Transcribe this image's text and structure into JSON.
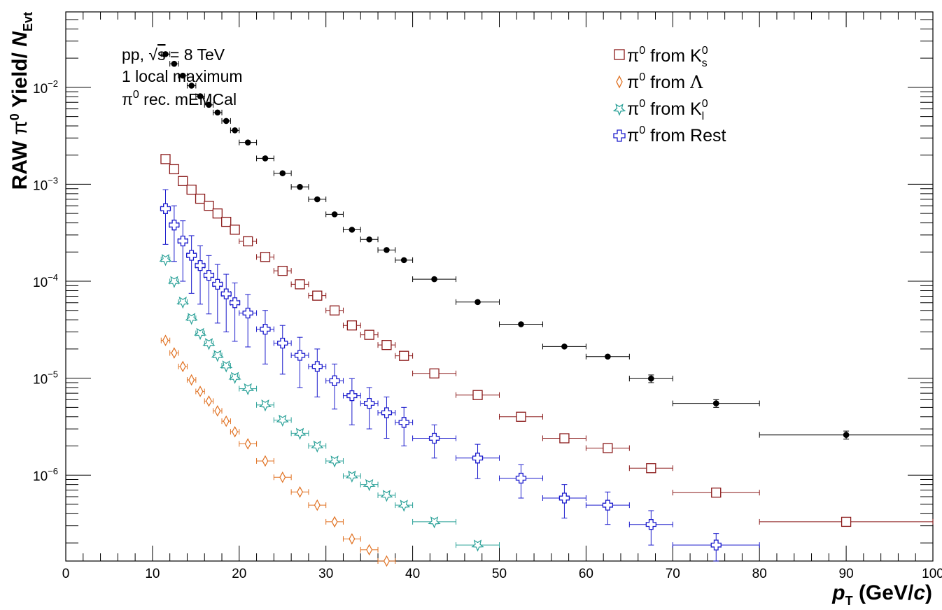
{
  "chart_data": {
    "type": "scatter",
    "x_scale": "linear",
    "y_scale": "log",
    "xlim": [
      0,
      100
    ],
    "ylim": [
      1.3e-07,
      0.06
    ],
    "x_ticks": [
      0,
      10,
      20,
      30,
      40,
      50,
      60,
      70,
      80,
      90,
      100
    ],
    "y_ticks": [
      {
        "value": 1e-06,
        "base": "10",
        "exp": "−6"
      },
      {
        "value": 1e-05,
        "base": "10",
        "exp": "−5"
      },
      {
        "value": 0.0001,
        "base": "10",
        "exp": "−4"
      },
      {
        "value": 0.001,
        "base": "10",
        "exp": "−3"
      },
      {
        "value": 0.01,
        "base": "10",
        "exp": "−2"
      }
    ],
    "xlabel": {
      "p": "p",
      "sub": "T",
      "rest": " (GeV/",
      "c": "c",
      "close": ")"
    },
    "ylabel": {
      "raw": "RAW ",
      "pi": "π",
      "sup": "0",
      "yield": " Yield/ ",
      "n": "N",
      "sub": "Evt"
    },
    "annotations": {
      "line1_a": "pp, ",
      "line1_sqrt": "√",
      "line1_s": "s",
      "line1_b": " = 8 TeV",
      "line2": "1 local maximum",
      "line3_pi": "π",
      "line3_sup": "0",
      "line3_rest": " rec. mEMCal"
    },
    "x_bins": [
      [
        11,
        12
      ],
      [
        12,
        13
      ],
      [
        13,
        14
      ],
      [
        14,
        15
      ],
      [
        15,
        16
      ],
      [
        16,
        17
      ],
      [
        17,
        18
      ],
      [
        18,
        19
      ],
      [
        19,
        20
      ],
      [
        20,
        22
      ],
      [
        22,
        24
      ],
      [
        24,
        26
      ],
      [
        26,
        28
      ],
      [
        28,
        30
      ],
      [
        30,
        32
      ],
      [
        32,
        34
      ],
      [
        34,
        36
      ],
      [
        36,
        38
      ],
      [
        38,
        40
      ],
      [
        40,
        45
      ],
      [
        45,
        50
      ],
      [
        50,
        55
      ],
      [
        55,
        60
      ],
      [
        60,
        65
      ],
      [
        65,
        70
      ],
      [
        70,
        80
      ],
      [
        80,
        100
      ]
    ],
    "series": [
      {
        "name": "",
        "marker": "filled-circle",
        "color": "#000000",
        "values": [
          0.022,
          0.0175,
          0.0132,
          0.0104,
          0.0081,
          0.0066,
          0.0055,
          0.0045,
          0.0036,
          0.0027,
          0.00185,
          0.0013,
          0.00094,
          0.0007,
          0.00049,
          0.00034,
          0.00027,
          0.00021,
          0.000165,
          0.000105,
          6.1e-05,
          3.6e-05,
          2.12e-05,
          1.67e-05,
          9.9e-06,
          5.5e-06,
          2.6e-06
        ],
        "y_errors": [
          0,
          0,
          0,
          0,
          0,
          0,
          0,
          0,
          0,
          0,
          0,
          0,
          0,
          0,
          0,
          0,
          0,
          0,
          0,
          0,
          0,
          0,
          0,
          0,
          9e-07,
          5e-07,
          2.5e-07
        ]
      },
      {
        "legend": {
          "pi": "π",
          "sup": "0",
          "text": " from K",
          "sub": "s",
          "sup2": "0"
        },
        "marker": "open-square",
        "color": "#8b1a1a",
        "values": [
          0.00182,
          0.00143,
          0.00108,
          0.00088,
          0.00071,
          0.0006,
          0.0005,
          0.00041,
          0.00034,
          0.000258,
          0.000178,
          0.000128,
          9.3e-05,
          7.1e-05,
          5e-05,
          3.5e-05,
          2.8e-05,
          2.2e-05,
          1.7e-05,
          1.12e-05,
          6.7e-06,
          4e-06,
          2.4e-06,
          1.9e-06,
          1.18e-06,
          6.6e-07,
          3.3e-07
        ]
      },
      {
        "legend": {
          "pi": "π",
          "sup": "0",
          "text": " from ",
          "lam": "Λ"
        },
        "marker": "open-diamond",
        "color": "#e07020",
        "values": [
          2.45e-05,
          1.82e-05,
          1.32e-05,
          9.6e-06,
          7.3e-06,
          5.8e-06,
          4.6e-06,
          3.6e-06,
          2.8e-06,
          2.1e-06,
          1.4e-06,
          9.5e-07,
          6.7e-07,
          4.9e-07,
          3.3e-07,
          2.2e-07,
          1.7e-07,
          1.3e-07
        ]
      },
      {
        "legend": {
          "pi": "π",
          "sup": "0",
          "text": " from K",
          "sub": "l",
          "sup2": "0"
        },
        "marker": "open-star",
        "color": "#2aa198",
        "values": [
          0.000168,
          9.95e-05,
          6.1e-05,
          4.15e-05,
          2.9e-05,
          2.28e-05,
          1.72e-05,
          1.34e-05,
          1.02e-05,
          7.8e-06,
          5.3e-06,
          3.7e-06,
          2.7e-06,
          2e-06,
          1.4e-06,
          9.8e-07,
          8e-07,
          6.2e-07,
          4.9e-07,
          3.3e-07,
          1.9e-07
        ]
      },
      {
        "legend": {
          "pi": "π",
          "sup": "0",
          "text": " from Rest"
        },
        "marker": "open-cross",
        "color": "#1a1acc",
        "values": [
          0.00056,
          0.00038,
          0.00026,
          0.000185,
          0.000145,
          0.000115,
          9.3e-05,
          7.4e-05,
          6e-05,
          4.7e-05,
          3.2e-05,
          2.3e-05,
          1.72e-05,
          1.32e-05,
          9.4e-06,
          6.6e-06,
          5.5e-06,
          4.4e-06,
          3.5e-06,
          2.4e-06,
          1.5e-06,
          9.3e-07,
          5.8e-07,
          4.9e-07,
          3.1e-07,
          1.9e-07
        ],
        "y_errors": [
          0.00032,
          0.00022,
          0.00016,
          0.00011,
          8.7e-05,
          6.9e-05,
          5.6e-05,
          4.4e-05,
          3.6e-05,
          2.6e-05,
          1.8e-05,
          1.2e-05,
          9.2e-06,
          6.8e-06,
          4.6e-06,
          3.3e-06,
          2.5e-06,
          2e-06,
          1.5e-06,
          9e-07,
          5.8e-07,
          3.5e-07,
          2.2e-07,
          1.8e-07,
          1.2e-07,
          6e-08
        ]
      }
    ],
    "legend_placement": "top-right"
  }
}
